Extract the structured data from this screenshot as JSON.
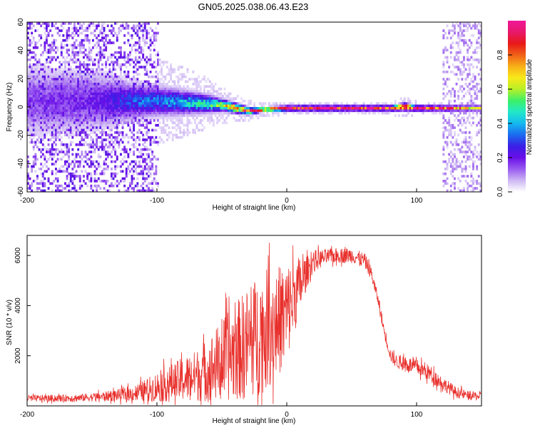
{
  "figure": {
    "title": "GN05.2025.038.06.43.E23"
  },
  "colors": {
    "spectro_background": "#ffffff",
    "snr_line": "#e8302c",
    "frame": "#000000",
    "colormap": [
      "#ffffff",
      "#cdb6f3",
      "#9a5cf0",
      "#6a0fe8",
      "#3b1fe6",
      "#1b6bf0",
      "#14b8f0",
      "#22e8c8",
      "#3cf068",
      "#b8f028",
      "#f8e818",
      "#f8b018",
      "#f06018",
      "#e81818",
      "#e8186a",
      "#f0189a"
    ]
  },
  "chart_data": [
    {
      "type": "heatmap",
      "title": "",
      "xlabel": "Height of straight line (km)",
      "ylabel": "Frequency (Hz)",
      "xlim": [
        -200,
        150
      ],
      "ylim": [
        -60,
        60
      ],
      "xticks": [
        "-200",
        "-100",
        "0",
        "100"
      ],
      "xtick_values": [
        -200,
        -100,
        0,
        100
      ],
      "yticks": [
        "60",
        "40",
        "20",
        "0",
        "-20",
        "-40",
        "-60"
      ],
      "ytick_values": [
        60,
        40,
        20,
        0,
        -20,
        -40,
        -60
      ],
      "colorbar": {
        "label": "Normalized spectral amplitude",
        "range": [
          0,
          1
        ],
        "ticks": [
          "0.0",
          "0.2",
          "0.4",
          "0.6",
          "0.8"
        ],
        "tick_values": [
          0.0,
          0.2,
          0.4,
          0.6,
          0.8
        ]
      },
      "ridge": {
        "x": [
          -200,
          -150,
          -120,
          -100,
          -80,
          -60,
          -50,
          -40,
          -30,
          -20,
          0,
          20,
          60,
          80,
          90,
          100,
          120,
          150
        ],
        "frequency_hz": [
          5,
          5,
          5,
          5,
          4,
          3,
          2,
          0,
          -2,
          -1,
          0,
          0,
          0,
          0,
          1,
          0,
          0,
          0
        ],
        "peak_amplitude": [
          0.15,
          0.18,
          0.3,
          0.35,
          0.4,
          0.5,
          0.6,
          0.75,
          0.85,
          0.9,
          0.95,
          0.95,
          0.95,
          0.95,
          0.9,
          0.95,
          0.85,
          0.6
        ],
        "spread_hz": [
          30,
          25,
          15,
          12,
          10,
          7,
          5,
          4,
          3,
          2,
          2,
          2,
          2,
          2,
          3,
          2,
          2,
          2
        ]
      },
      "noise_regions": [
        {
          "x_range": [
            -200,
            -100
          ],
          "frequency_range": [
            -60,
            60
          ],
          "amplitude": 0.15
        },
        {
          "x_range": [
            120,
            150
          ],
          "frequency_range": [
            -60,
            60
          ],
          "amplitude": 0.08
        }
      ]
    },
    {
      "type": "line",
      "title": "",
      "xlabel": "Height of straight line (km)",
      "ylabel": "SNR (10 * v/v)",
      "xlim": [
        -200,
        150
      ],
      "ylim": [
        0,
        6800
      ],
      "xticks": [
        "-200",
        "-100",
        "0",
        "100"
      ],
      "xtick_values": [
        -200,
        -100,
        0,
        100
      ],
      "yticks": [
        "2000",
        "4000",
        "6000"
      ],
      "ytick_values": [
        2000,
        4000,
        6000
      ],
      "series": [
        {
          "x": [
            -200,
            -180,
            -160,
            -140,
            -120,
            -110,
            -100,
            -90,
            -80,
            -70,
            -60,
            -50,
            -40,
            -30,
            -20,
            -10,
            0,
            5,
            10,
            15,
            20,
            30,
            40,
            50,
            60,
            65,
            70,
            75,
            80,
            85,
            90,
            100,
            110,
            120,
            130,
            140,
            150
          ],
          "y": [
            300,
            300,
            320,
            380,
            480,
            600,
            750,
            900,
            1050,
            1200,
            1450,
            1800,
            2150,
            2500,
            2900,
            3250,
            3700,
            4300,
            4800,
            5300,
            5750,
            5950,
            6000,
            6000,
            5800,
            5300,
            4300,
            3000,
            2000,
            1750,
            1700,
            1550,
            1300,
            900,
            550,
            400,
            380
          ],
          "noise_fraction": [
            0.45,
            0.45,
            0.45,
            0.5,
            0.6,
            0.7,
            0.8,
            0.8,
            0.85,
            0.85,
            0.9,
            0.9,
            0.9,
            0.9,
            0.85,
            0.7,
            0.55,
            0.35,
            0.25,
            0.12,
            0.08,
            0.05,
            0.05,
            0.05,
            0.05,
            0.05,
            0.05,
            0.08,
            0.12,
            0.15,
            0.18,
            0.2,
            0.25,
            0.3,
            0.4,
            0.45,
            0.45
          ]
        }
      ]
    }
  ]
}
